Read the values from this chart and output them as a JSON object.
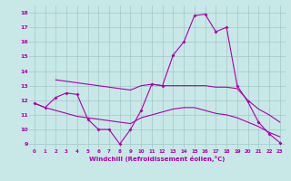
{
  "xlabel": "Windchill (Refroidissement éolien,°C)",
  "x_ticks": [
    0,
    1,
    2,
    3,
    4,
    5,
    6,
    7,
    8,
    9,
    10,
    11,
    12,
    13,
    14,
    15,
    16,
    17,
    18,
    19,
    20,
    21,
    22,
    23
  ],
  "ylim": [
    8.7,
    18.5
  ],
  "yticks": [
    9,
    10,
    11,
    12,
    13,
    14,
    15,
    16,
    17,
    18
  ],
  "bg_color": "#c8e8e8",
  "grid_color": "#a0c8c8",
  "line_color": "#aa00aa",
  "line1_x": [
    0,
    1,
    2,
    3,
    4,
    5,
    6,
    7,
    8,
    9,
    10,
    11,
    12,
    13,
    14,
    15,
    16,
    17,
    18,
    19,
    20,
    21,
    22,
    23
  ],
  "line1_y": [
    11.8,
    11.5,
    12.2,
    12.5,
    12.4,
    10.7,
    10.0,
    10.0,
    9.0,
    10.0,
    11.3,
    13.1,
    13.0,
    15.1,
    16.0,
    17.8,
    17.9,
    16.7,
    17.0,
    13.0,
    11.9,
    10.5,
    9.7,
    9.1
  ],
  "line2_x": [
    2,
    3,
    4,
    5,
    6,
    7,
    8,
    9,
    10,
    11,
    12,
    13,
    14,
    15,
    16,
    17,
    18,
    19,
    20,
    21,
    22,
    23
  ],
  "line2_y": [
    13.4,
    13.3,
    13.2,
    13.1,
    13.0,
    12.9,
    12.8,
    12.7,
    13.0,
    13.1,
    13.0,
    13.0,
    13.0,
    13.0,
    13.0,
    12.9,
    12.9,
    12.8,
    12.0,
    11.4,
    11.0,
    10.5
  ],
  "line3_x": [
    0,
    1,
    2,
    3,
    4,
    5,
    6,
    7,
    8,
    9,
    10,
    11,
    12,
    13,
    14,
    15,
    16,
    17,
    18,
    19,
    20,
    21,
    22,
    23
  ],
  "line3_y": [
    11.8,
    11.5,
    11.3,
    11.1,
    10.9,
    10.8,
    10.7,
    10.6,
    10.5,
    10.4,
    10.8,
    11.0,
    11.2,
    11.4,
    11.5,
    11.5,
    11.3,
    11.1,
    11.0,
    10.8,
    10.5,
    10.2,
    9.8,
    9.5
  ]
}
